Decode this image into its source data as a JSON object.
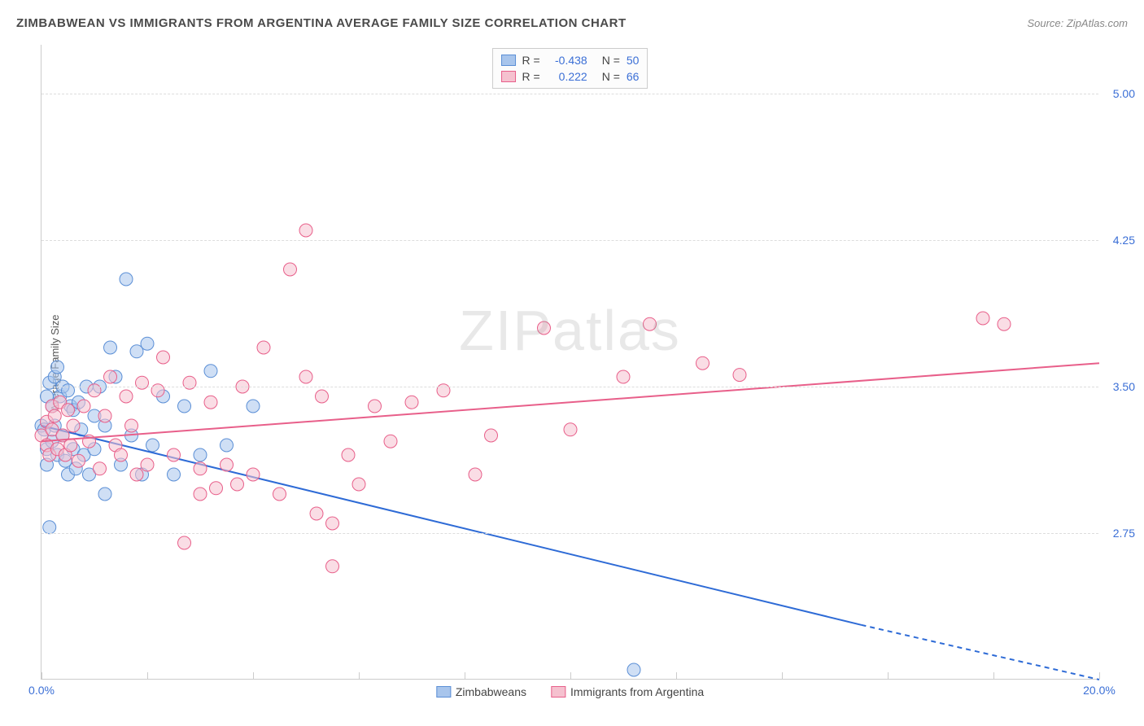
{
  "header": {
    "title": "ZIMBABWEAN VS IMMIGRANTS FROM ARGENTINA AVERAGE FAMILY SIZE CORRELATION CHART",
    "source": "Source: ZipAtlas.com"
  },
  "ylabel": "Average Family Size",
  "watermark": {
    "bold": "ZIP",
    "thin": "atlas"
  },
  "chart": {
    "type": "scatter",
    "xlim": [
      0,
      20
    ],
    "ylim": [
      2.0,
      5.25
    ],
    "xtick_labels": {
      "0": "0.0%",
      "20": "20.0%"
    },
    "xtick_positions": [
      0,
      2,
      4,
      6,
      8,
      10,
      12,
      14,
      16,
      18,
      20
    ],
    "ytick_positions": [
      2.75,
      3.5,
      4.25,
      5.0
    ],
    "ytick_labels": [
      "2.75",
      "3.50",
      "4.25",
      "5.00"
    ],
    "grid_color": "#dddddd",
    "axis_color": "#cccccc",
    "label_color": "#3b6fd6",
    "label_fontsize": 14,
    "series": [
      {
        "name": "Zimbabweans",
        "fill": "#a8c5ec",
        "stroke": "#5b8fd6",
        "fill_opacity": 0.55,
        "marker_radius": 8,
        "R": "-0.438",
        "N": "50",
        "trend": {
          "x1": 0,
          "y1": 3.3,
          "x2": 15.5,
          "y2": 2.28,
          "solid": true,
          "dash_after_x": 15.5,
          "dash_y2": 2.0,
          "dash_x2": 20,
          "color": "#2e6bd6",
          "width": 2
        },
        "points": [
          [
            0.0,
            3.3
          ],
          [
            0.05,
            3.28
          ],
          [
            0.1,
            3.45
          ],
          [
            0.1,
            3.18
          ],
          [
            0.1,
            3.1
          ],
          [
            0.15,
            3.52
          ],
          [
            0.15,
            2.78
          ],
          [
            0.2,
            3.4
          ],
          [
            0.2,
            3.22
          ],
          [
            0.25,
            3.55
          ],
          [
            0.25,
            3.3
          ],
          [
            0.3,
            3.6
          ],
          [
            0.3,
            3.15
          ],
          [
            0.35,
            3.45
          ],
          [
            0.4,
            3.5
          ],
          [
            0.4,
            3.25
          ],
          [
            0.45,
            3.12
          ],
          [
            0.5,
            3.48
          ],
          [
            0.5,
            3.05
          ],
          [
            0.55,
            3.4
          ],
          [
            0.6,
            3.38
          ],
          [
            0.6,
            3.18
          ],
          [
            0.65,
            3.08
          ],
          [
            0.7,
            3.42
          ],
          [
            0.75,
            3.28
          ],
          [
            0.8,
            3.15
          ],
          [
            0.85,
            3.5
          ],
          [
            0.9,
            3.05
          ],
          [
            1.0,
            3.35
          ],
          [
            1.0,
            3.18
          ],
          [
            1.1,
            3.5
          ],
          [
            1.2,
            3.3
          ],
          [
            1.2,
            2.95
          ],
          [
            1.3,
            3.7
          ],
          [
            1.4,
            3.55
          ],
          [
            1.5,
            3.1
          ],
          [
            1.6,
            4.05
          ],
          [
            1.7,
            3.25
          ],
          [
            1.8,
            3.68
          ],
          [
            1.9,
            3.05
          ],
          [
            2.0,
            3.72
          ],
          [
            2.1,
            3.2
          ],
          [
            2.3,
            3.45
          ],
          [
            2.5,
            3.05
          ],
          [
            2.7,
            3.4
          ],
          [
            3.0,
            3.15
          ],
          [
            3.2,
            3.58
          ],
          [
            3.5,
            3.2
          ],
          [
            4.0,
            3.4
          ],
          [
            11.2,
            2.05
          ]
        ]
      },
      {
        "name": "Immigrants from Argentina",
        "fill": "#f5c1cf",
        "stroke": "#e85f8a",
        "fill_opacity": 0.55,
        "marker_radius": 8,
        "R": "0.222",
        "N": "66",
        "trend": {
          "x1": 0,
          "y1": 3.22,
          "x2": 20,
          "y2": 3.62,
          "solid": true,
          "color": "#e85f8a",
          "width": 2
        },
        "points": [
          [
            0.0,
            3.25
          ],
          [
            0.1,
            3.32
          ],
          [
            0.1,
            3.2
          ],
          [
            0.15,
            3.15
          ],
          [
            0.2,
            3.4
          ],
          [
            0.2,
            3.28
          ],
          [
            0.25,
            3.35
          ],
          [
            0.3,
            3.18
          ],
          [
            0.35,
            3.42
          ],
          [
            0.4,
            3.25
          ],
          [
            0.45,
            3.15
          ],
          [
            0.5,
            3.38
          ],
          [
            0.55,
            3.2
          ],
          [
            0.6,
            3.3
          ],
          [
            0.7,
            3.12
          ],
          [
            0.8,
            3.4
          ],
          [
            0.9,
            3.22
          ],
          [
            1.0,
            3.48
          ],
          [
            1.1,
            3.08
          ],
          [
            1.2,
            3.35
          ],
          [
            1.3,
            3.55
          ],
          [
            1.4,
            3.2
          ],
          [
            1.5,
            3.15
          ],
          [
            1.6,
            3.45
          ],
          [
            1.7,
            3.3
          ],
          [
            1.8,
            3.05
          ],
          [
            1.9,
            3.52
          ],
          [
            2.0,
            3.1
          ],
          [
            2.2,
            3.48
          ],
          [
            2.3,
            3.65
          ],
          [
            2.5,
            3.15
          ],
          [
            2.7,
            2.7
          ],
          [
            2.8,
            3.52
          ],
          [
            3.0,
            3.08
          ],
          [
            3.0,
            2.95
          ],
          [
            3.2,
            3.42
          ],
          [
            3.3,
            2.98
          ],
          [
            3.5,
            3.1
          ],
          [
            3.7,
            3.0
          ],
          [
            3.8,
            3.5
          ],
          [
            4.0,
            3.05
          ],
          [
            4.2,
            3.7
          ],
          [
            4.5,
            2.95
          ],
          [
            4.7,
            4.1
          ],
          [
            5.0,
            3.55
          ],
          [
            5.0,
            4.3
          ],
          [
            5.2,
            2.85
          ],
          [
            5.3,
            3.45
          ],
          [
            5.5,
            2.8
          ],
          [
            5.8,
            3.15
          ],
          [
            5.5,
            2.58
          ],
          [
            6.0,
            3.0
          ],
          [
            6.3,
            3.4
          ],
          [
            6.6,
            3.22
          ],
          [
            7.0,
            3.42
          ],
          [
            7.6,
            3.48
          ],
          [
            8.2,
            3.05
          ],
          [
            8.5,
            3.25
          ],
          [
            9.5,
            3.8
          ],
          [
            10.0,
            3.28
          ],
          [
            11.0,
            3.55
          ],
          [
            11.5,
            3.82
          ],
          [
            12.5,
            3.62
          ],
          [
            13.2,
            3.56
          ],
          [
            17.8,
            3.85
          ],
          [
            18.2,
            3.82
          ]
        ]
      }
    ]
  },
  "legend_top": [
    {
      "swatch_fill": "#a8c5ec",
      "swatch_stroke": "#5b8fd6",
      "R": "-0.438",
      "N": "50"
    },
    {
      "swatch_fill": "#f5c1cf",
      "swatch_stroke": "#e85f8a",
      "R": "0.222",
      "N": "66"
    }
  ],
  "legend_bottom": [
    {
      "swatch_fill": "#a8c5ec",
      "swatch_stroke": "#5b8fd6",
      "label": "Zimbabweans"
    },
    {
      "swatch_fill": "#f5c1cf",
      "swatch_stroke": "#e85f8a",
      "label": "Immigrants from Argentina"
    }
  ]
}
